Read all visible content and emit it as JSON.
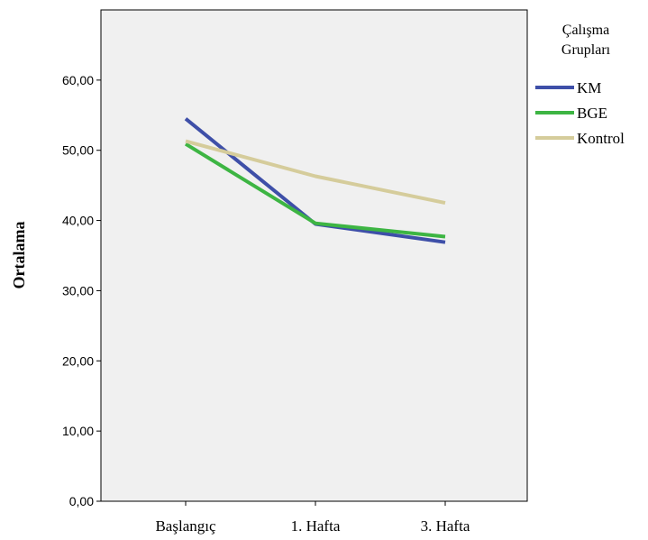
{
  "chart_data": {
    "type": "line",
    "title": "",
    "ylabel": "Ortalama",
    "xlabel": "",
    "categories": [
      "Başlangıç",
      "1. Hafta",
      "3. Hafta"
    ],
    "ylim": [
      0,
      70
    ],
    "yticks": [
      "0,00",
      "10,00",
      "20,00",
      "30,00",
      "40,00",
      "50,00",
      "60,00"
    ],
    "grid": false,
    "legend": {
      "title_line1": "Çalışma",
      "title_line2": "Grupları",
      "placement": "right"
    },
    "plot_background": "#f0f0f0",
    "series": [
      {
        "name": "KM",
        "color": "#3e4fa8",
        "values": [
          54.5,
          39.5,
          36.9
        ]
      },
      {
        "name": "BGE",
        "color": "#3db543",
        "values": [
          50.9,
          39.6,
          37.7
        ]
      },
      {
        "name": "Kontrol",
        "color": "#d5cc9b",
        "values": [
          51.3,
          46.3,
          42.5
        ]
      }
    ]
  }
}
